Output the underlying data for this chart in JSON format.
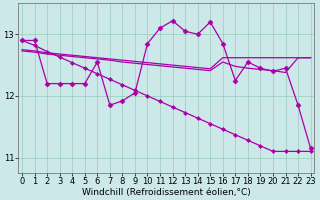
{
  "xlabel": "Windchill (Refroidissement éolien,°C)",
  "bg_color": "#cce8e8",
  "line_color": "#aa00aa",
  "x": [
    0,
    1,
    2,
    3,
    4,
    5,
    6,
    7,
    8,
    9,
    10,
    11,
    12,
    13,
    14,
    15,
    16,
    17,
    18,
    19,
    20,
    21,
    22,
    23
  ],
  "line_diag": [
    12.9,
    12.82,
    12.72,
    12.63,
    12.54,
    12.45,
    12.36,
    12.27,
    12.18,
    12.09,
    12.0,
    11.91,
    11.82,
    11.73,
    11.64,
    11.55,
    11.46,
    11.37,
    11.28,
    11.19,
    11.1,
    11.1,
    11.1,
    11.1
  ],
  "line_flat1": [
    12.75,
    12.73,
    12.7,
    12.68,
    12.66,
    12.64,
    12.62,
    12.6,
    12.58,
    12.56,
    12.54,
    12.52,
    12.5,
    12.48,
    12.46,
    12.44,
    12.62,
    12.62,
    12.62,
    12.62,
    12.62,
    12.62,
    12.62,
    12.62
  ],
  "line_flat2": [
    12.73,
    12.71,
    12.68,
    12.66,
    12.64,
    12.62,
    12.6,
    12.58,
    12.55,
    12.53,
    12.51,
    12.49,
    12.47,
    12.45,
    12.43,
    12.41,
    12.55,
    12.48,
    12.45,
    12.43,
    12.41,
    12.38,
    12.62,
    12.62
  ],
  "line_zigzag": [
    12.9,
    12.9,
    12.2,
    12.2,
    12.2,
    12.2,
    12.55,
    11.85,
    11.92,
    12.05,
    12.85,
    13.1,
    13.22,
    13.05,
    13.0,
    13.2,
    12.85,
    12.25,
    12.55,
    12.45,
    12.4,
    12.45,
    11.85,
    11.15
  ],
  "ylim": [
    10.75,
    13.5
  ],
  "yticks": [
    11,
    12,
    13
  ],
  "xticks": [
    0,
    1,
    2,
    3,
    4,
    5,
    6,
    7,
    8,
    9,
    10,
    11,
    12,
    13,
    14,
    15,
    16,
    17,
    18,
    19,
    20,
    21,
    22,
    23
  ],
  "tick_fontsize": 6,
  "xlabel_fontsize": 6.5
}
